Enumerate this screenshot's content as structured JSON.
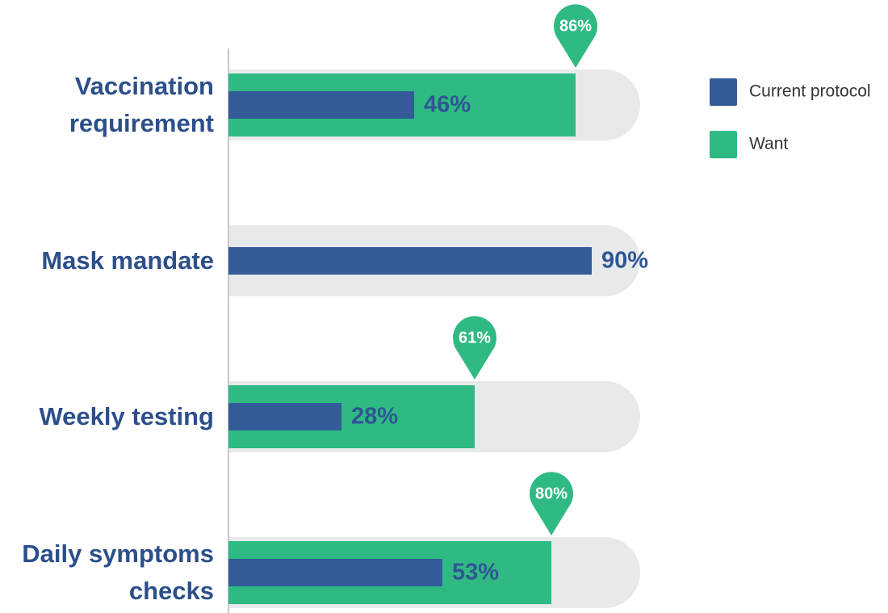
{
  "chart_data": {
    "type": "bar",
    "categories": [
      "Vaccination requirement",
      "Mask mandate",
      "Weekly testing",
      "Daily symptoms checks"
    ],
    "series": [
      {
        "name": "Current protocol",
        "color": "#335b97",
        "values": [
          46,
          90,
          28,
          53
        ],
        "value_labels": [
          "46%",
          "90%",
          "28%",
          "53%"
        ]
      },
      {
        "name": "Want",
        "color": "#2fba83",
        "values": [
          86,
          null,
          61,
          80
        ],
        "value_labels": [
          "86%",
          null,
          "61%",
          "80%"
        ]
      }
    ],
    "xlim": [
      0,
      100
    ],
    "legend": "top-right"
  }
}
